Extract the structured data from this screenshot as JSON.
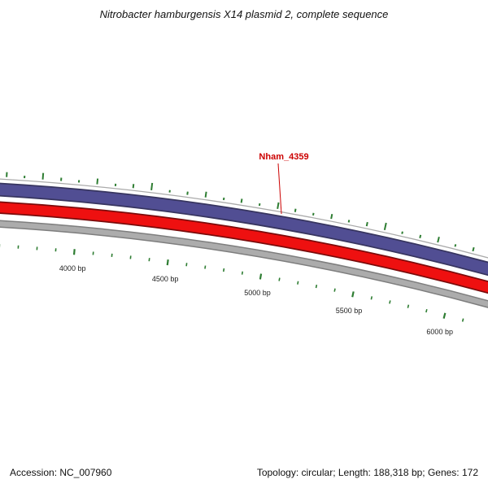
{
  "title": "Nitrobacter hamburgensis X14 plasmid 2, complete sequence",
  "feature_label": {
    "text": "Nham_4359"
  },
  "footer": {
    "accession": "Accession: NC_007960",
    "topology": "Topology: circular; Length: 188,318 bp; Genes: 172"
  },
  "colors": {
    "purple_ring": "#514E93",
    "purple_outline": "#37355F",
    "red_ring": "#EE1010",
    "red_outline": "#7A0B0B",
    "gray_ring": "#ACACAC",
    "gray_outline": "#7E7E7E",
    "frame_gray": "#AAAAAA",
    "tick_green": "#2E7D32",
    "label_red": "#CC0000",
    "ruler_text": "#222222"
  },
  "ruler": {
    "labels": [
      {
        "text": "4000 bp",
        "t": 0.1617
      },
      {
        "text": "4500 bp",
        "t": 0.3567
      },
      {
        "text": "5000 bp",
        "t": 0.5517
      },
      {
        "text": "5500 bp",
        "t": 0.7467
      },
      {
        "text": "6000 bp",
        "t": 0.9417
      }
    ],
    "major_tick_ts": [
      0.1617,
      0.3567,
      0.5517,
      0.7467,
      0.9417
    ],
    "minor_tick_ts": [
      0.006,
      0.045,
      0.084,
      0.123,
      0.201,
      0.24,
      0.279,
      0.318,
      0.396,
      0.435,
      0.474,
      0.513,
      0.591,
      0.63,
      0.669,
      0.708,
      0.786,
      0.825,
      0.864,
      0.903,
      0.981
    ]
  },
  "gene_ticks": [
    {
      "t": 0.012,
      "len": 6
    },
    {
      "t": 0.048,
      "len": 3
    },
    {
      "t": 0.085,
      "len": 8
    },
    {
      "t": 0.122,
      "len": 4
    },
    {
      "t": 0.158,
      "len": 3
    },
    {
      "t": 0.195,
      "len": 7
    },
    {
      "t": 0.232,
      "len": 3
    },
    {
      "t": 0.268,
      "len": 5
    },
    {
      "t": 0.305,
      "len": 9
    },
    {
      "t": 0.342,
      "len": 3
    },
    {
      "t": 0.378,
      "len": 4
    },
    {
      "t": 0.415,
      "len": 7
    },
    {
      "t": 0.452,
      "len": 3
    },
    {
      "t": 0.488,
      "len": 5
    },
    {
      "t": 0.525,
      "len": 3
    },
    {
      "t": 0.562,
      "len": 8
    },
    {
      "t": 0.598,
      "len": 4
    },
    {
      "t": 0.635,
      "len": 3
    },
    {
      "t": 0.672,
      "len": 6
    },
    {
      "t": 0.708,
      "len": 3
    },
    {
      "t": 0.745,
      "len": 5
    },
    {
      "t": 0.782,
      "len": 9
    },
    {
      "t": 0.818,
      "len": 3
    },
    {
      "t": 0.855,
      "len": 4
    },
    {
      "t": 0.892,
      "len": 7
    },
    {
      "t": 0.928,
      "len": 3
    },
    {
      "t": 0.965,
      "len": 5
    },
    {
      "t": 0.998,
      "len": 4
    }
  ]
}
